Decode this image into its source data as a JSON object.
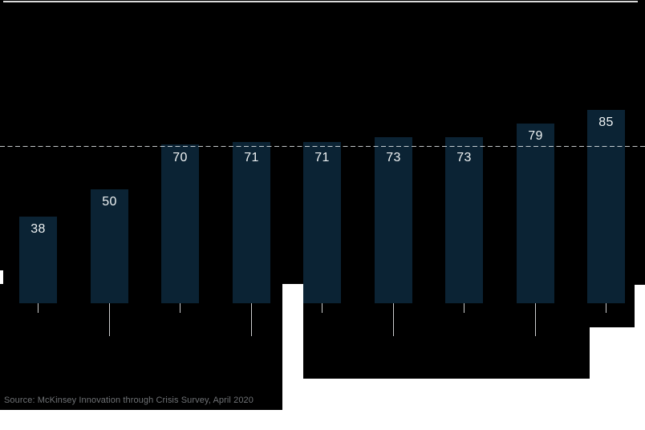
{
  "chart_data": {
    "type": "bar",
    "values": [
      38,
      50,
      70,
      71,
      71,
      73,
      73,
      79,
      85
    ],
    "value_labels": [
      "38",
      "50",
      "70",
      "71",
      "71",
      "73",
      "73",
      "79",
      "85"
    ],
    "title": "",
    "xlabel": "",
    "ylabel": "",
    "ylim": [
      0,
      100
    ],
    "grid": false,
    "legend": false,
    "has_reference_dashed_line": true,
    "bar_color": "#0b2334",
    "label_color": "#eef2f3",
    "background_color": "#000000",
    "dashed_line_color": "#ebf0f2",
    "tick_line_color": "#c9cbcc"
  },
  "footer": {
    "source": "Source: McKinsey Innovation through Crisis Survey, April 2020"
  }
}
